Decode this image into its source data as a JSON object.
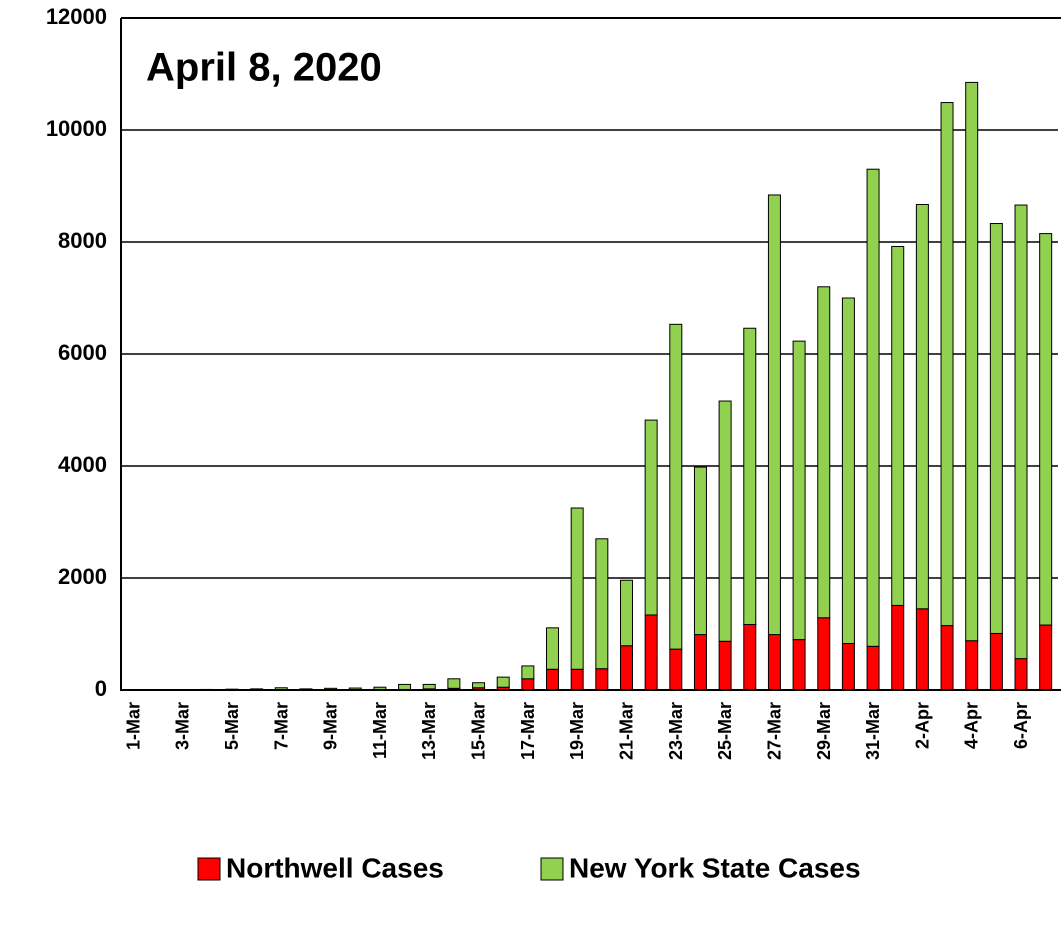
{
  "chart_data": {
    "type": "stacked_bar",
    "title": "April 8, 2020",
    "categories": [
      "1-Mar",
      null,
      "3-Mar",
      null,
      "5-Mar",
      null,
      "7-Mar",
      null,
      "9-Mar",
      null,
      "11-Mar",
      null,
      "13-Mar",
      null,
      "15-Mar",
      null,
      "17-Mar",
      null,
      "19-Mar",
      null,
      "21-Mar",
      null,
      "23-Mar",
      null,
      "25-Mar",
      null,
      "27-Mar",
      null,
      "29-Mar",
      null,
      "31-Mar",
      null,
      "2-Apr",
      null,
      "4-Apr",
      null,
      "6-Apr",
      null
    ],
    "series": [
      {
        "name": "Northwell Cases",
        "color": "#ff0000",
        "values": [
          0,
          0,
          0,
          0,
          0,
          0,
          0,
          0,
          5,
          5,
          10,
          10,
          20,
          30,
          40,
          50,
          200,
          370,
          370,
          380,
          790,
          1340,
          730,
          990,
          870,
          1170,
          990,
          900,
          1290,
          830,
          780,
          1510,
          1450,
          1150,
          880,
          1010,
          560,
          1160
        ]
      },
      {
        "name": "New York State Cases",
        "color": "#92d050",
        "values": [
          0,
          0,
          5,
          10,
          15,
          20,
          40,
          20,
          25,
          30,
          40,
          90,
          80,
          170,
          90,
          180,
          230,
          740,
          2880,
          2320,
          1170,
          3480,
          5800,
          2990,
          4290,
          5290,
          7850,
          5330,
          5910,
          6170,
          8520,
          6410,
          7220,
          9340,
          9970,
          7320,
          8100,
          6990
        ]
      }
    ],
    "ylim": [
      0,
      12000
    ],
    "yticks": [
      0,
      2000,
      4000,
      6000,
      8000,
      10000,
      12000
    ],
    "grid": true,
    "legend": "bottom"
  }
}
